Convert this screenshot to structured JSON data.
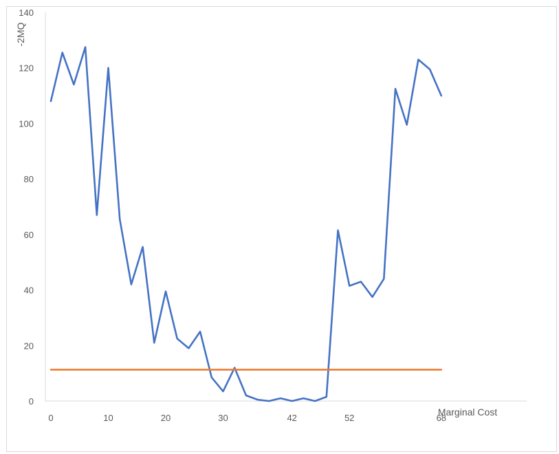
{
  "chart_data": {
    "type": "line",
    "xlabel": "Marginal Cost",
    "ylabel": "-2MQ",
    "ylim": [
      0,
      140
    ],
    "yticks": [
      "0",
      "20",
      "40",
      "60",
      "80",
      "100",
      "120",
      "140"
    ],
    "xtick_labels": [
      "0",
      "10",
      "20",
      "30",
      "42",
      "52",
      "68"
    ],
    "grid": false,
    "x": [
      0,
      2,
      4,
      6,
      8,
      10,
      12,
      14,
      16,
      18,
      20,
      22,
      24,
      26,
      28,
      30,
      32,
      34,
      36,
      38,
      40,
      42,
      44,
      46,
      48,
      50,
      52,
      54,
      56,
      58,
      60,
      62,
      64,
      66,
      68
    ],
    "series": [
      {
        "color": "#4472c4",
        "values": [
          108,
          125.5,
          114,
          127.5,
          67,
          120,
          65.5,
          42,
          55.5,
          21,
          39.5,
          22.5,
          19,
          25,
          8.5,
          3.5,
          12,
          2,
          0.5,
          0,
          1,
          0,
          1,
          0,
          1.5,
          61.5,
          41.5,
          43,
          37.5,
          44,
          112.5,
          99.5,
          123,
          119.5,
          110
        ]
      },
      {
        "color": "#ed7d31",
        "values": [
          11.3,
          11.3,
          11.3,
          11.3,
          11.3,
          11.3,
          11.3,
          11.3,
          11.3,
          11.3,
          11.3,
          11.3,
          11.3,
          11.3,
          11.3,
          11.3,
          11.3,
          11.3,
          11.3,
          11.3,
          11.3,
          11.3,
          11.3,
          11.3,
          11.3,
          11.3,
          11.3,
          11.3,
          11.3,
          11.3,
          11.3,
          11.3,
          11.3,
          11.3,
          11.3
        ]
      }
    ]
  }
}
